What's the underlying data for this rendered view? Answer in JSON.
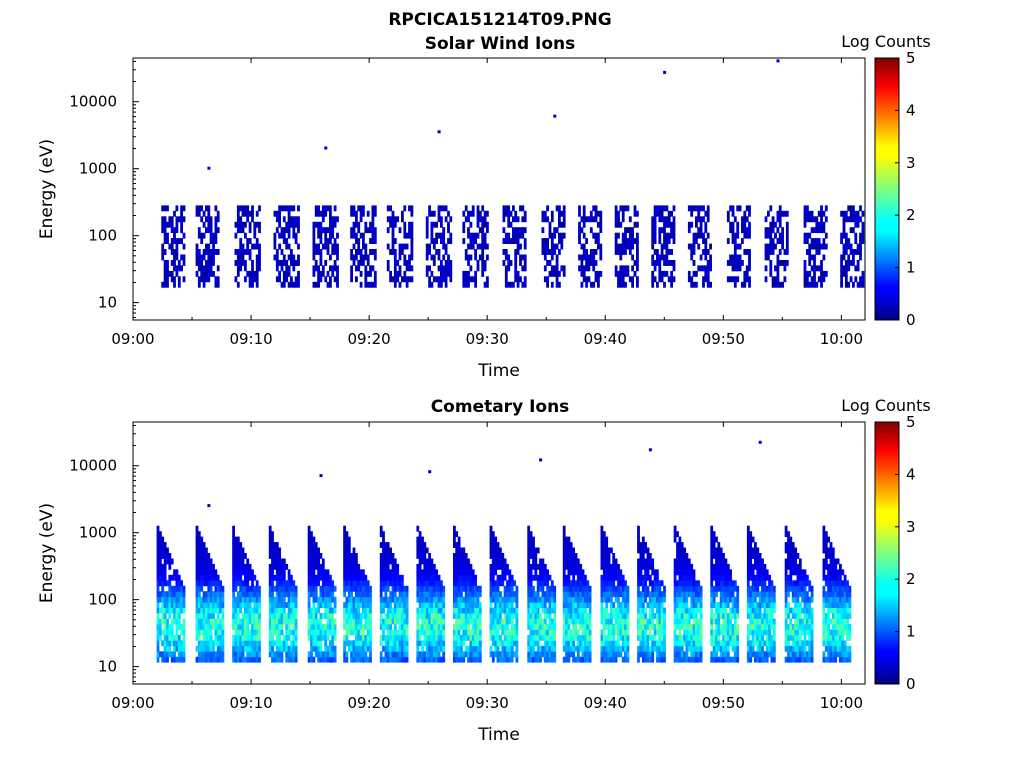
{
  "figure_title": "RPCICA151214T09.PNG",
  "chart_data": [
    {
      "type": "heatmap",
      "title": "Solar Wind Ions",
      "xlabel": "Time",
      "ylabel": "Energy (eV)",
      "xlim": [
        "09:00",
        "10:02"
      ],
      "x_tick_labels": [
        "09:00",
        "09:10",
        "09:20",
        "09:30",
        "09:40",
        "09:50",
        "10:00"
      ],
      "ylim": [
        5.5,
        45000
      ],
      "y_scale": "log",
      "y_tick_labels": [
        "10",
        "100",
        "1000",
        "10000"
      ],
      "colorbar": {
        "label": "Log Counts",
        "min": 0,
        "max": 5,
        "tick_labels": [
          "0",
          "1",
          "2",
          "3",
          "4",
          "5"
        ],
        "colormap": "jet"
      },
      "grid": false,
      "scan_start_minutes": [
        2.4,
        5.3,
        8.6,
        11.9,
        15.2,
        18.4,
        21.5,
        24.8,
        27.9,
        31.3,
        34.6,
        37.7,
        40.8,
        43.9,
        47.0,
        50.3,
        53.5,
        56.8,
        59.9
      ],
      "scan_duration_minutes": 2.0,
      "energy_range_eV": [
        17,
        300
      ],
      "typical_log_counts": 0.3,
      "sparse_high_energy_events_eV": [
        1000,
        2000,
        3500,
        6000,
        27000,
        40000
      ]
    },
    {
      "type": "heatmap",
      "title": "Cometary Ions",
      "xlabel": "Time",
      "ylabel": "Energy (eV)",
      "xlim": [
        "09:00",
        "10:02"
      ],
      "x_tick_labels": [
        "09:00",
        "09:10",
        "09:20",
        "09:30",
        "09:40",
        "09:50",
        "10:00"
      ],
      "ylim": [
        5.5,
        45000
      ],
      "y_scale": "log",
      "y_tick_labels": [
        "10",
        "100",
        "1000",
        "10000"
      ],
      "colorbar": {
        "label": "Log Counts",
        "min": 0,
        "max": 5,
        "tick_labels": [
          "0",
          "1",
          "2",
          "3",
          "4",
          "5"
        ],
        "colormap": "jet"
      },
      "grid": false,
      "scan_start_minutes": [
        2.0,
        5.3,
        8.4,
        11.5,
        14.8,
        17.8,
        20.9,
        24.0,
        27.1,
        30.2,
        33.4,
        36.4,
        39.6,
        42.7,
        45.8,
        48.9,
        52.0,
        55.2,
        58.4
      ],
      "scan_duration_minutes": 2.3,
      "energy_range_eV": [
        12,
        1200
      ],
      "peak_log_counts": 2.1,
      "peak_energy_eV": 40,
      "sparse_high_energy_events_eV": [
        2500,
        7000,
        8000,
        12000,
        17000,
        22000
      ]
    }
  ]
}
